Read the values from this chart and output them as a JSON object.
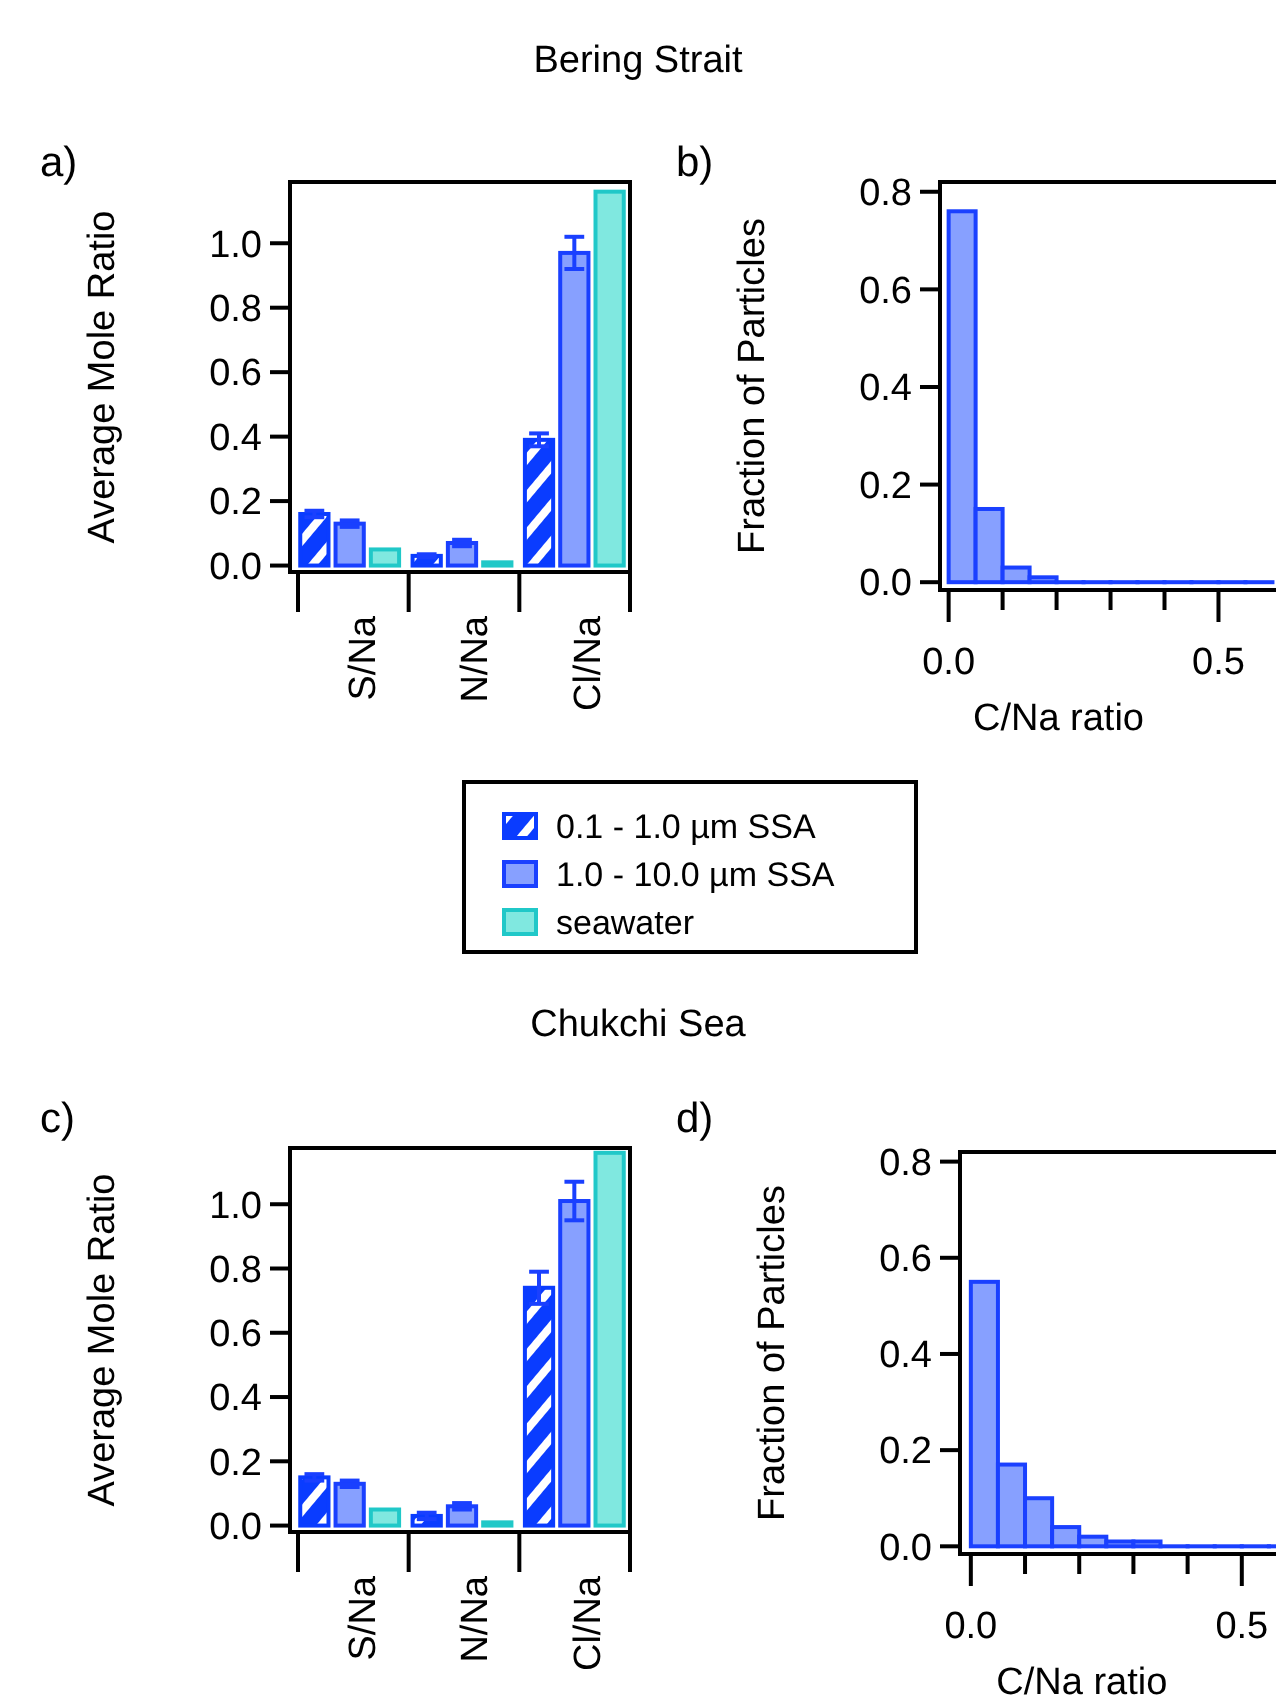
{
  "chart_data": [
    {
      "type": "bar",
      "title": "Bering Strait",
      "ylabel": "Average Mole Ratio",
      "annotations": [
        "a)"
      ],
      "categories": [
        "S/Na",
        "N/Na",
        "Cl/Na"
      ],
      "ylim": [
        -0.02,
        1.19
      ],
      "yticks": [
        {
          "value": 0,
          "label": "0.0"
        },
        {
          "value": 0.2,
          "label": "0.2"
        },
        {
          "value": 0.4,
          "label": "0.4"
        },
        {
          "value": 0.6,
          "label": "0.6"
        },
        {
          "value": 0.8,
          "label": "0.8"
        },
        {
          "value": 1,
          "label": "1.0"
        }
      ],
      "legend": "bottom",
      "series": [
        {
          "name": "0.1 - 1.0 µm SSA",
          "color": "#0a3cff",
          "values": [
            0.16,
            0.03,
            0.39
          ],
          "errors": [
            0.01,
            0.005,
            0.02
          ]
        },
        {
          "name": "1.0 - 10.0 µm SSA",
          "color": "#87a0ff",
          "values": [
            0.13,
            0.07,
            0.97
          ],
          "errors": [
            0.01,
            0.01,
            0.05
          ]
        },
        {
          "name": "seawater",
          "color": "#80e8e0",
          "values": [
            0.05,
            0.01,
            1.16
          ]
        }
      ]
    },
    {
      "type": "histogram",
      "ylabel": "Fraction of Particles",
      "xlabel": "C/Na ratio",
      "annotations": [
        "b)"
      ],
      "color": "#87a0ff",
      "bins": [
        0,
        0.05,
        0.1,
        0.15,
        0.2,
        0.25,
        0.3,
        0.35,
        0.4,
        0.45,
        0.5,
        0.55,
        0.6
      ],
      "values": [
        0.76,
        0.15,
        0.03,
        0.01,
        0,
        0,
        0,
        0,
        0,
        0,
        0,
        0
      ],
      "xlim": [
        -0.016,
        0.614
      ],
      "xticks": [
        {
          "value": 0,
          "label": "0.0"
        },
        {
          "value": 0.1,
          "label": null
        },
        {
          "value": 0.2,
          "label": null
        },
        {
          "value": 0.3,
          "label": null
        },
        {
          "value": 0.4,
          "label": null
        },
        {
          "value": 0.5,
          "label": "0.5"
        }
      ],
      "ylim": [
        -0.016,
        0.82
      ],
      "yticks": [
        {
          "value": 0,
          "label": "0.0"
        },
        {
          "value": 0.2,
          "label": "0.2"
        },
        {
          "value": 0.4,
          "label": "0.4"
        },
        {
          "value": 0.6,
          "label": "0.6"
        },
        {
          "value": 0.8,
          "label": "0.8"
        }
      ]
    },
    {
      "type": "bar",
      "title": "Chukchi Sea",
      "ylabel": "Average Mole Ratio",
      "annotations": [
        "c)"
      ],
      "categories": [
        "S/Na",
        "N/Na",
        "Cl/Na"
      ],
      "ylim": [
        -0.02,
        1.175
      ],
      "yticks": [
        {
          "value": 0,
          "label": "0.0"
        },
        {
          "value": 0.2,
          "label": "0.2"
        },
        {
          "value": 0.4,
          "label": "0.4"
        },
        {
          "value": 0.6,
          "label": "0.6"
        },
        {
          "value": 0.8,
          "label": "0.8"
        },
        {
          "value": 1,
          "label": "1.0"
        }
      ],
      "series": [
        {
          "color": "#0a3cff",
          "values": [
            0.15,
            0.03,
            0.74
          ],
          "errors": [
            0.01,
            0.01,
            0.05
          ]
        },
        {
          "color": "#87a0ff",
          "values": [
            0.13,
            0.06,
            1.01
          ],
          "errors": [
            0.01,
            0.01,
            0.06
          ]
        },
        {
          "color": "#80e8e0",
          "values": [
            0.05,
            0.01,
            1.16
          ]
        }
      ]
    },
    {
      "type": "histogram",
      "ylabel": "Fraction of Particles",
      "xlabel": "C/Na ratio",
      "annotations": [
        "d)"
      ],
      "color": "#87a0ff",
      "bins": [
        0,
        0.05,
        0.1,
        0.15,
        0.2,
        0.25,
        0.3,
        0.35,
        0.4,
        0.45,
        0.5,
        0.55,
        0.6
      ],
      "values": [
        0.55,
        0.17,
        0.1,
        0.04,
        0.02,
        0.01,
        0.01,
        0,
        0,
        0,
        0,
        0
      ],
      "xlim": [
        -0.02,
        0.6
      ],
      "xticks": [
        {
          "value": 0,
          "label": "0.0"
        },
        {
          "value": 0.1,
          "label": null
        },
        {
          "value": 0.2,
          "label": null
        },
        {
          "value": 0.3,
          "label": null
        },
        {
          "value": 0.4,
          "label": null
        },
        {
          "value": 0.5,
          "label": "0.5"
        }
      ],
      "ylim": [
        -0.016,
        0.82
      ],
      "yticks": [
        {
          "value": 0,
          "label": "0.0"
        },
        {
          "value": 0.2,
          "label": "0.2"
        },
        {
          "value": 0.4,
          "label": "0.4"
        },
        {
          "value": 0.6,
          "label": "0.6"
        },
        {
          "value": 0.8,
          "label": "0.8"
        }
      ]
    }
  ]
}
